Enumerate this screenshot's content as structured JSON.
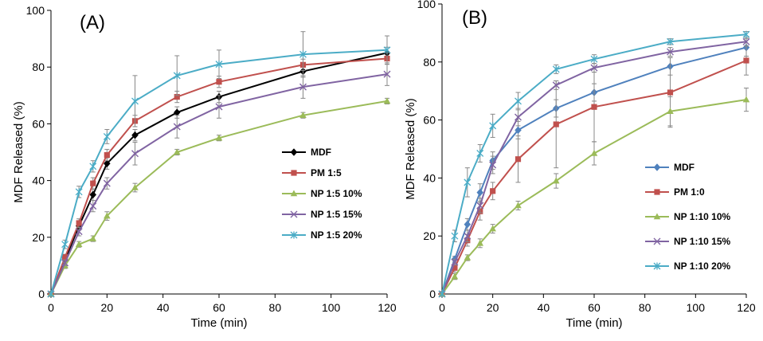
{
  "chart_data": [
    {
      "type": "line",
      "panel_label": "(A)",
      "xlabel": "Time (min)",
      "ylabel": "MDF Released (%)",
      "xlim": [
        0,
        120
      ],
      "ylim": [
        0,
        100
      ],
      "xticks": [
        0,
        20,
        40,
        60,
        80,
        100,
        120
      ],
      "yticks": [
        0,
        20,
        40,
        60,
        80,
        100
      ],
      "x": [
        0,
        5,
        10,
        15,
        20,
        30,
        45,
        60,
        90,
        120
      ],
      "legend_position": "center-right",
      "series": [
        {
          "name": "MDF",
          "color": "#000000",
          "marker": "diamond",
          "values": [
            0,
            12,
            24,
            35,
            46,
            56,
            64,
            69.5,
            78.5,
            85
          ],
          "errors": [
            0,
            1,
            1.5,
            2,
            2,
            2,
            2,
            2,
            2,
            2
          ]
        },
        {
          "name": "PM 1:5",
          "color": "#c0504d",
          "marker": "square",
          "values": [
            0,
            13,
            25,
            39,
            49,
            61,
            69.5,
            74.8,
            80.8,
            83
          ],
          "errors": [
            0,
            1,
            1.5,
            2,
            2,
            2,
            2,
            2,
            2,
            2
          ]
        },
        {
          "name": "NP 1:5 10%",
          "color": "#9bbb59",
          "marker": "triangle",
          "values": [
            0,
            10,
            17.5,
            19.5,
            27.5,
            37.5,
            50,
            55,
            63,
            68
          ],
          "errors": [
            0,
            1,
            1,
            1,
            1.5,
            1.5,
            1,
            1,
            1,
            1
          ]
        },
        {
          "name": "NP 1:5 15%",
          "color": "#8064a2",
          "marker": "x",
          "values": [
            0,
            11,
            22,
            31,
            39,
            49.5,
            59,
            66,
            73,
            77.5
          ],
          "errors": [
            0,
            1,
            1.5,
            2,
            2,
            4,
            4,
            4,
            4,
            4
          ]
        },
        {
          "name": "NP 1:5 20%",
          "color": "#4bacc6",
          "marker": "asterisk",
          "values": [
            0,
            17.5,
            36,
            45,
            55.5,
            68,
            77,
            81,
            84.5,
            86
          ],
          "errors": [
            0,
            1.5,
            2,
            2,
            2.5,
            9,
            7,
            5,
            8,
            5
          ]
        }
      ]
    },
    {
      "type": "line",
      "panel_label": "(B)",
      "xlabel": "Time (min)",
      "ylabel": "MDF Released (%)",
      "xlim": [
        0,
        120
      ],
      "ylim": [
        0,
        100
      ],
      "xticks": [
        0,
        20,
        40,
        60,
        80,
        100,
        120
      ],
      "yticks": [
        0,
        20,
        40,
        60,
        80,
        100
      ],
      "x": [
        0,
        5,
        10,
        15,
        20,
        30,
        45,
        60,
        90,
        120
      ],
      "legend_position": "center-right",
      "series": [
        {
          "name": "MDF",
          "color": "#4f81bd",
          "marker": "diamond",
          "values": [
            0,
            12,
            24,
            35,
            46,
            56.5,
            64,
            69.5,
            78.5,
            85
          ],
          "errors": [
            0,
            1,
            2,
            3,
            3,
            3,
            3,
            3,
            3,
            3
          ]
        },
        {
          "name": "PM 1:0",
          "color": "#c0504d",
          "marker": "square",
          "values": [
            0,
            9,
            18.5,
            28.5,
            35.5,
            46.5,
            58.5,
            64.5,
            69.5,
            80.5
          ],
          "errors": [
            0,
            1.5,
            2,
            3,
            3,
            8,
            15,
            12,
            12,
            5
          ]
        },
        {
          "name": "NP 1:10 10%",
          "color": "#9bbb59",
          "marker": "triangle",
          "values": [
            0,
            6,
            12.5,
            17.5,
            22.5,
            30.5,
            39,
            48.5,
            63,
            67
          ],
          "errors": [
            0,
            1,
            1,
            1.5,
            1.5,
            1.5,
            2.5,
            4,
            5,
            4
          ]
        },
        {
          "name": "NP 1:10 15%",
          "color": "#8064a2",
          "marker": "x",
          "values": [
            0,
            11,
            20,
            30.5,
            44.5,
            61,
            72,
            78,
            83.5,
            87
          ],
          "errors": [
            0,
            1,
            2,
            2.5,
            3,
            3,
            1.5,
            1.5,
            1.5,
            1.5
          ]
        },
        {
          "name": "NP 1:10 20%",
          "color": "#4bacc6",
          "marker": "asterisk",
          "values": [
            0,
            20,
            38.5,
            48.5,
            58,
            66.5,
            77.5,
            81,
            87,
            89.5
          ],
          "errors": [
            0,
            2,
            5,
            3,
            4,
            3,
            1.5,
            1.5,
            1,
            1
          ]
        }
      ]
    }
  ]
}
